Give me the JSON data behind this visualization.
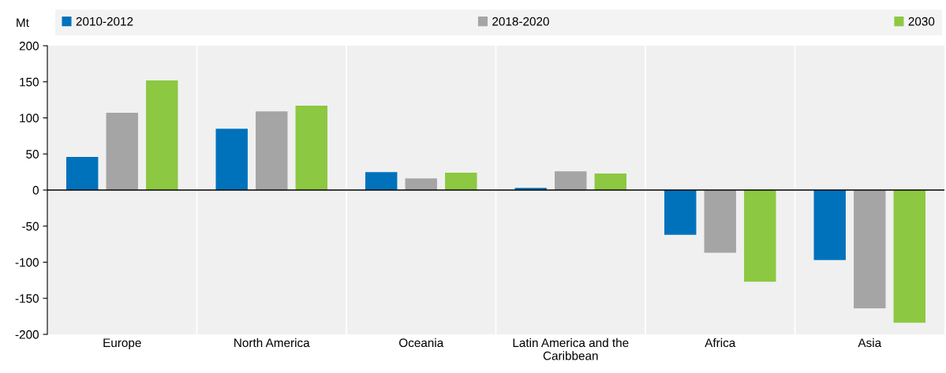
{
  "chart_data": {
    "type": "bar",
    "ylabel": "Mt",
    "categories": [
      "Europe",
      "North America",
      "Oceania",
      "Latin America and the\nCaribbean",
      "Africa",
      "Asia"
    ],
    "series": [
      {
        "name": "2010-2012",
        "color": "#0072bc",
        "values": [
          46,
          85,
          25,
          3,
          -62,
          -97
        ]
      },
      {
        "name": "2018-2020",
        "color": "#a5a5a5",
        "values": [
          107,
          109,
          16,
          26,
          -87,
          -164
        ]
      },
      {
        "name": "2030",
        "color": "#8cc841",
        "values": [
          152,
          117,
          24,
          23,
          -127,
          -184
        ]
      }
    ],
    "ylim": [
      -200,
      200
    ],
    "yticks": [
      -200,
      -150,
      -100,
      -50,
      0,
      50,
      100,
      150,
      200
    ],
    "grid": false,
    "legend": "top"
  }
}
